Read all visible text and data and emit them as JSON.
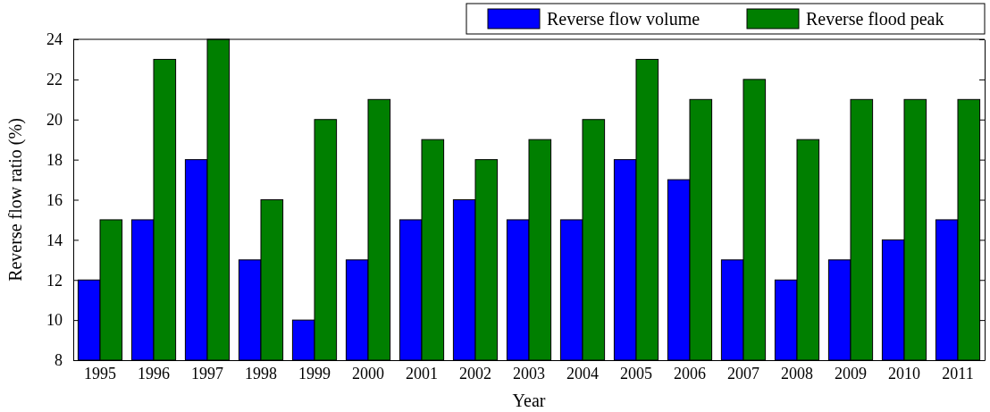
{
  "chart_data": {
    "type": "bar",
    "xlabel": "Year",
    "ylabel": "Reverse flow ratio (%)",
    "categories": [
      "1995",
      "1996",
      "1997",
      "1998",
      "1999",
      "2000",
      "2001",
      "2002",
      "2003",
      "2004",
      "2005",
      "2006",
      "2007",
      "2008",
      "2009",
      "2010",
      "2011"
    ],
    "series": [
      {
        "name": "Reverse flow volume",
        "color": "#0000ff",
        "values": [
          12,
          15,
          18,
          13,
          10,
          13,
          15,
          16,
          15,
          15,
          18,
          17,
          13,
          12,
          13,
          14,
          15
        ]
      },
      {
        "name": "Reverse flood peak",
        "color": "#007f00",
        "values": [
          15,
          23,
          24,
          16,
          20,
          21,
          19,
          18,
          19,
          20,
          23,
          21,
          22,
          19,
          21,
          21,
          21
        ]
      }
    ],
    "ylim": [
      8,
      24
    ],
    "yticks": [
      8,
      10,
      12,
      14,
      16,
      18,
      20,
      22,
      24
    ],
    "grid": false,
    "legend": "top right"
  }
}
